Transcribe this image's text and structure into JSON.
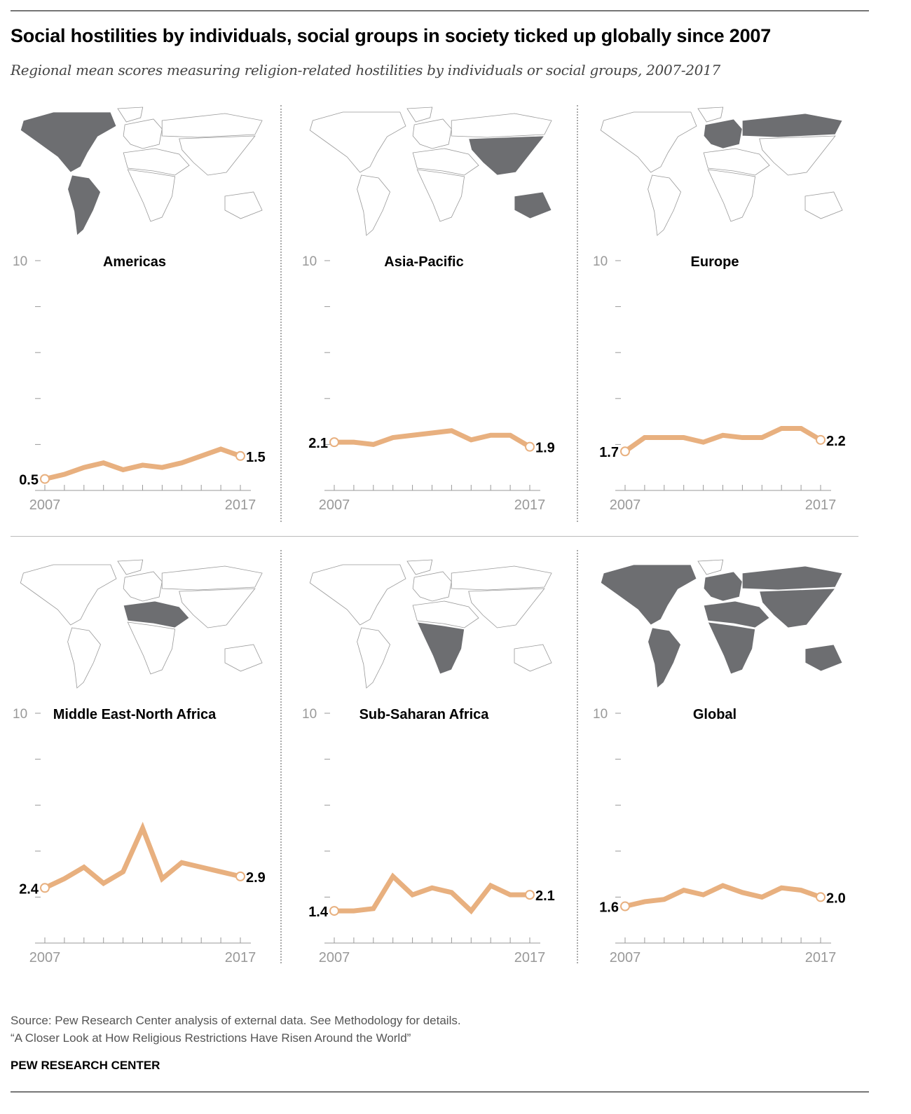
{
  "title": "Social hostilities by individuals, social groups in society ticked up globally since 2007",
  "subtitle": "Regional mean scores measuring religion-related hostilities by individuals or social groups, 2007-2017",
  "colors": {
    "line": "#e8b07f",
    "map_fill": "#6d6e71",
    "map_stroke": "#999999",
    "axis": "#999999"
  },
  "chart_data": [
    {
      "type": "line",
      "title": "Americas",
      "map_highlight": [
        "na",
        "sa"
      ],
      "x": [
        2007,
        2008,
        2009,
        2010,
        2011,
        2012,
        2013,
        2014,
        2015,
        2016,
        2017
      ],
      "values": [
        0.5,
        0.7,
        1.0,
        1.2,
        0.9,
        1.1,
        1.0,
        1.2,
        1.5,
        1.8,
        1.5
      ],
      "start_label": "0.5",
      "end_label": "1.5",
      "ylim": [
        0,
        10
      ],
      "ytick_label": "10",
      "xtick_labels": [
        "2007",
        "2017"
      ]
    },
    {
      "type": "line",
      "title": "Asia-Pacific",
      "map_highlight": [
        "asia",
        "aus"
      ],
      "x": [
        2007,
        2008,
        2009,
        2010,
        2011,
        2012,
        2013,
        2014,
        2015,
        2016,
        2017
      ],
      "values": [
        2.1,
        2.1,
        2.0,
        2.3,
        2.4,
        2.5,
        2.6,
        2.2,
        2.4,
        2.4,
        1.9
      ],
      "start_label": "2.1",
      "end_label": "1.9",
      "ylim": [
        0,
        10
      ],
      "ytick_label": "10",
      "xtick_labels": [
        "2007",
        "2017"
      ]
    },
    {
      "type": "line",
      "title": "Europe",
      "map_highlight": [
        "eu",
        "russia"
      ],
      "x": [
        2007,
        2008,
        2009,
        2010,
        2011,
        2012,
        2013,
        2014,
        2015,
        2016,
        2017
      ],
      "values": [
        1.7,
        2.3,
        2.3,
        2.3,
        2.1,
        2.4,
        2.3,
        2.3,
        2.7,
        2.7,
        2.2
      ],
      "start_label": "1.7",
      "end_label": "2.2",
      "ylim": [
        0,
        10
      ],
      "ytick_label": "10",
      "xtick_labels": [
        "2007",
        "2017"
      ]
    },
    {
      "type": "line",
      "title": "Middle East-North Africa",
      "map_highlight": [
        "mena"
      ],
      "x": [
        2007,
        2008,
        2009,
        2010,
        2011,
        2012,
        2013,
        2014,
        2015,
        2016,
        2017
      ],
      "values": [
        2.4,
        2.8,
        3.3,
        2.6,
        3.1,
        5.0,
        2.8,
        3.5,
        3.3,
        3.1,
        2.9
      ],
      "start_label": "2.4",
      "end_label": "2.9",
      "ylim": [
        0,
        10
      ],
      "ytick_label": "10",
      "xtick_labels": [
        "2007",
        "2017"
      ]
    },
    {
      "type": "line",
      "title": "Sub-Saharan Africa",
      "map_highlight": [
        "ssa"
      ],
      "x": [
        2007,
        2008,
        2009,
        2010,
        2011,
        2012,
        2013,
        2014,
        2015,
        2016,
        2017
      ],
      "values": [
        1.4,
        1.4,
        1.5,
        2.9,
        2.1,
        2.4,
        2.2,
        1.4,
        2.5,
        2.1,
        2.1
      ],
      "start_label": "1.4",
      "end_label": "2.1",
      "ylim": [
        0,
        10
      ],
      "ytick_label": "10",
      "xtick_labels": [
        "2007",
        "2017"
      ]
    },
    {
      "type": "line",
      "title": "Global",
      "map_highlight": [
        "na",
        "sa",
        "eu",
        "russia",
        "mena",
        "ssa",
        "asia",
        "aus"
      ],
      "x": [
        2007,
        2008,
        2009,
        2010,
        2011,
        2012,
        2013,
        2014,
        2015,
        2016,
        2017
      ],
      "values": [
        1.6,
        1.8,
        1.9,
        2.3,
        2.1,
        2.5,
        2.2,
        2.0,
        2.4,
        2.3,
        2.0
      ],
      "start_label": "1.6",
      "end_label": "2.0",
      "ylim": [
        0,
        10
      ],
      "ytick_label": "10",
      "xtick_labels": [
        "2007",
        "2017"
      ]
    }
  ],
  "footer": {
    "source": "Source: Pew Research Center analysis of external data. See Methodology for details.",
    "report": "“A Closer Look at How Religious Restrictions Have Risen Around the World”",
    "brand": "PEW RESEARCH CENTER"
  }
}
